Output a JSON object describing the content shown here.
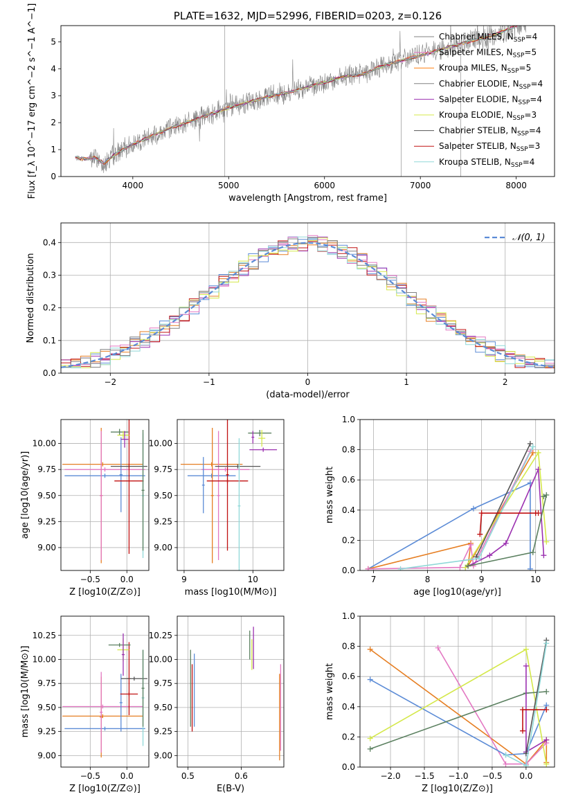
{
  "chart_data": [
    {
      "id": "spectrum",
      "type": "line",
      "title": "PLATE=1632, MJD=52996, FIBERID=0203, z=0.126",
      "xlabel": "wavelength [Angstrom, rest frame]",
      "ylabel": "Flux [f_λ 10^−17 erg cm^−2 s^−1 A^−1]",
      "xlim": [
        3250,
        8400
      ],
      "ylim": [
        0,
        5.6
      ],
      "xticks": [
        4000,
        5000,
        6000,
        7000,
        8000
      ],
      "yticks": [
        0,
        1,
        2,
        3,
        4,
        5
      ],
      "grid": false,
      "legend_position": "top-right",
      "data_color": "#808080",
      "data_x": [
        3400,
        3500,
        3600,
        3700,
        3800,
        3900,
        4000,
        4200,
        4400,
        4600,
        4800,
        5000,
        5200,
        5400,
        5600,
        5800,
        6000,
        6200,
        6400,
        6600,
        6800,
        7000,
        7200,
        7400,
        7600,
        7800,
        8000,
        8100
      ],
      "data_y": [
        0.7,
        0.65,
        0.7,
        0.5,
        0.8,
        1.0,
        1.2,
        1.5,
        1.8,
        2.05,
        2.3,
        2.55,
        2.75,
        2.95,
        3.1,
        3.3,
        3.5,
        3.7,
        3.8,
        4.1,
        4.3,
        4.5,
        4.7,
        4.9,
        5.1,
        5.3,
        5.6,
        5.8
      ],
      "series": [
        {
          "name": "Chabrier MILES",
          "nssp": "4",
          "color": "#808080"
        },
        {
          "name": "Salpeter MILES",
          "nssp": "5",
          "color": "#e377c2"
        },
        {
          "name": "Kroupa MILES",
          "nssp": "5",
          "color": "#ff7f0e"
        },
        {
          "name": "Chabrier ELODIE",
          "nssp": "4",
          "color": "#808080"
        },
        {
          "name": "Salpeter ELODIE",
          "nssp": "4",
          "color": "#9b30b0"
        },
        {
          "name": "Kroupa ELODIE",
          "nssp": "3",
          "color": "#d4e84a"
        },
        {
          "name": "Chabrier STELIB",
          "nssp": "4",
          "color": "#555555"
        },
        {
          "name": "Salpeter STELIB",
          "nssp": "3",
          "color": "#c01010"
        },
        {
          "name": "Kroupa STELIB",
          "nssp": "4",
          "color": "#8fd8d8"
        }
      ]
    },
    {
      "id": "residuals",
      "type": "line",
      "title": "",
      "xlabel": "(data-model)/error",
      "ylabel": "Normed distribution",
      "xlim": [
        -2.5,
        2.5
      ],
      "ylim": [
        0,
        0.46
      ],
      "xticks": [
        -2,
        -1,
        0,
        1,
        2
      ],
      "yticks": [
        0.0,
        0.1,
        0.2,
        0.3,
        0.4
      ],
      "grid": true,
      "legend_position": "top-right",
      "legend_label": "𝒩(0, 1)",
      "gauss_color": "#5b8bd6",
      "bin_width": 0.1,
      "hist_colors": [
        "#5b8bd6",
        "#e67e22",
        "#9b30b0",
        "#c01010",
        "#e377c2",
        "#d4e84a",
        "#8fd8d8",
        "#808080"
      ]
    },
    {
      "id": "age_vs_Z",
      "type": "scatter",
      "xlabel": "Z [log10(Z/Z⊙)]",
      "ylabel": "age  [log10(age/yr)]",
      "xlim": [
        -0.9,
        0.3
      ],
      "ylim": [
        8.78,
        10.23
      ],
      "xticks": [
        -0.5,
        0.0
      ],
      "yticks": [
        9.0,
        9.25,
        9.5,
        9.75,
        10.0
      ],
      "grid": true,
      "points": [
        {
          "x": -0.33,
          "xerr": 0.55,
          "y": 9.8,
          "yerr": 0.02,
          "color": "#e67e22"
        },
        {
          "x": -0.3,
          "xerr": 0.55,
          "y": 9.75,
          "yerr": 0.02,
          "color": "#e377c2"
        },
        {
          "x": -0.3,
          "xerr": 0.55,
          "y": 9.69,
          "yerr": 0.02,
          "color": "#5b8bd6"
        },
        {
          "x": -0.35,
          "xerr": 0.02,
          "y": 9.5,
          "yerr": 0.65,
          "color": "#e67e22"
        },
        {
          "x": -0.35,
          "xerr": 0.02,
          "y": 9.5,
          "yerr": 0.62,
          "color": "#e377c2"
        },
        {
          "x": -0.08,
          "xerr": 0.02,
          "y": 9.7,
          "yerr": 0.36,
          "color": "#5b8bd6"
        },
        {
          "x": 0.03,
          "xerr": 0.25,
          "y": 9.78,
          "yerr": 0.02,
          "color": "#555555"
        },
        {
          "x": 0.03,
          "xerr": 0.2,
          "y": 9.64,
          "yerr": 0.7,
          "color": "#c01010"
        },
        {
          "x": 0.22,
          "xerr": 0.02,
          "y": 9.5,
          "yerr": 0.6,
          "color": "#8fd8d8"
        },
        {
          "x": 0.22,
          "xerr": 0.02,
          "y": 9.55,
          "yerr": 0.58,
          "color": "#5b8060"
        },
        {
          "x": -0.1,
          "xerr": 0.12,
          "y": 10.11,
          "yerr": 0.03,
          "color": "#5b8060"
        },
        {
          "x": -0.05,
          "xerr": 0.08,
          "y": 10.08,
          "yerr": 0.04,
          "color": "#d4e84a"
        },
        {
          "x": -0.03,
          "xerr": 0.05,
          "y": 10.04,
          "yerr": 0.08,
          "color": "#9b30b0"
        }
      ]
    },
    {
      "id": "age_vs_mass",
      "type": "scatter",
      "xlabel": "mass [log10(M/M⊙)]",
      "ylabel": "",
      "xlim": [
        8.9,
        10.45
      ],
      "ylim": [
        8.78,
        10.23
      ],
      "xticks": [
        9,
        10
      ],
      "yticks": [
        9.0,
        9.25,
        9.5,
        9.75,
        10.0
      ],
      "grid": true,
      "points": [
        {
          "x": 9.4,
          "xerr": 0.45,
          "y": 9.8,
          "yerr": 0.02,
          "color": "#e67e22"
        },
        {
          "x": 9.6,
          "xerr": 0.35,
          "y": 9.75,
          "yerr": 0.02,
          "color": "#e377c2"
        },
        {
          "x": 9.4,
          "xerr": 0.35,
          "y": 9.69,
          "yerr": 0.02,
          "color": "#5b8bd6"
        },
        {
          "x": 9.28,
          "xerr": 0.02,
          "y": 9.6,
          "yerr": 0.27,
          "color": "#5b8bd6"
        },
        {
          "x": 9.41,
          "xerr": 0.02,
          "y": 9.5,
          "yerr": 0.65,
          "color": "#e67e22"
        },
        {
          "x": 9.5,
          "xerr": 0.02,
          "y": 9.5,
          "yerr": 0.62,
          "color": "#e377c2"
        },
        {
          "x": 9.63,
          "xerr": 0.3,
          "y": 9.64,
          "yerr": 0.02,
          "color": "#c01010"
        },
        {
          "x": 9.63,
          "xerr": 0.02,
          "y": 9.7,
          "yerr": 0.73,
          "color": "#c01010"
        },
        {
          "x": 9.78,
          "xerr": 0.33,
          "y": 9.78,
          "yerr": 0.02,
          "color": "#555555"
        },
        {
          "x": 9.8,
          "xerr": 0.02,
          "y": 9.4,
          "yerr": 0.65,
          "color": "#8fd8d8"
        },
        {
          "x": 10.1,
          "xerr": 0.17,
          "y": 10.1,
          "yerr": 0.03,
          "color": "#5b8060"
        },
        {
          "x": 10.13,
          "xerr": 0.05,
          "y": 10.05,
          "yerr": 0.08,
          "color": "#d4e84a"
        },
        {
          "x": 10.15,
          "xerr": 0.2,
          "y": 9.94,
          "yerr": 0.02,
          "color": "#9b30b0"
        },
        {
          "x": 10.0,
          "xerr": 0.02,
          "y": 10.06,
          "yerr": 0.06,
          "color": "#9b30b0"
        }
      ]
    },
    {
      "id": "weight_vs_age",
      "type": "line",
      "xlabel": "age  [log10(age/yr)]",
      "ylabel": "mass weight",
      "xlim": [
        6.75,
        10.35
      ],
      "ylim": [
        0.0,
        1.0
      ],
      "xticks": [
        7,
        8,
        9,
        10
      ],
      "yticks": [
        0.0,
        0.2,
        0.4,
        0.6,
        0.8,
        1.0
      ],
      "grid": true,
      "series": [
        {
          "color": "#5b8bd6",
          "x": [
            6.9,
            8.85,
            9.9,
            9.9
          ],
          "y": [
            0.01,
            0.41,
            0.58,
            0.01
          ]
        },
        {
          "color": "#e67e22",
          "x": [
            6.9,
            8.8,
            8.75,
            9.95
          ],
          "y": [
            0.01,
            0.18,
            0.03,
            0.78
          ]
        },
        {
          "color": "#e377c2",
          "x": [
            6.9,
            8.6,
            8.8,
            8.85,
            9.9
          ],
          "y": [
            0.01,
            0.02,
            0.17,
            0.03,
            0.79
          ]
        },
        {
          "color": "#9b30b0",
          "x": [
            8.7,
            9.15,
            9.45,
            10.05,
            10.15
          ],
          "y": [
            0.02,
            0.1,
            0.18,
            0.67,
            0.1
          ]
        },
        {
          "color": "#d4e84a",
          "x": [
            8.7,
            10.05,
            10.2
          ],
          "y": [
            0.02,
            0.78,
            0.19
          ]
        },
        {
          "color": "#5b8060",
          "x": [
            8.75,
            9.95,
            10.2,
            10.15
          ],
          "y": [
            0.03,
            0.12,
            0.5,
            0.49
          ]
        },
        {
          "color": "#555555",
          "x": [
            8.9,
            9.9
          ],
          "y": [
            0.09,
            0.84
          ]
        },
        {
          "color": "#8fd8d8",
          "x": [
            7.5,
            8.95,
            9.95
          ],
          "y": [
            0.01,
            0.08,
            0.82
          ]
        },
        {
          "color": "#c01010",
          "x": [
            8.97,
            9.0,
            10.0,
            10.05
          ],
          "y": [
            0.24,
            0.38,
            0.38,
            0.38
          ]
        }
      ]
    },
    {
      "id": "mass_vs_Z",
      "type": "scatter",
      "xlabel": "Z [log10(Z/Z⊙)]",
      "ylabel": "mass [log10(M/M⊙)]",
      "xlim": [
        -0.9,
        0.3
      ],
      "ylim": [
        8.88,
        10.45
      ],
      "xticks": [
        -0.5,
        0.0
      ],
      "yticks": [
        9.0,
        9.25,
        9.5,
        9.75,
        10.0,
        10.25
      ],
      "grid": true,
      "points": [
        {
          "x": -0.33,
          "xerr": 0.55,
          "y": 9.51,
          "yerr": 0.02,
          "color": "#e377c2"
        },
        {
          "x": -0.33,
          "xerr": 0.55,
          "y": 9.41,
          "yerr": 0.02,
          "color": "#e67e22"
        },
        {
          "x": -0.3,
          "xerr": 0.55,
          "y": 9.28,
          "yerr": 0.02,
          "color": "#5b8bd6"
        },
        {
          "x": -0.35,
          "xerr": 0.02,
          "y": 9.4,
          "yerr": 0.42,
          "color": "#e67e22"
        },
        {
          "x": -0.35,
          "xerr": 0.02,
          "y": 9.45,
          "yerr": 0.42,
          "color": "#e377c2"
        },
        {
          "x": -0.08,
          "xerr": 0.02,
          "y": 9.55,
          "yerr": 0.3,
          "color": "#5b8bd6"
        },
        {
          "x": 0.03,
          "xerr": 0.12,
          "y": 9.64,
          "yerr": 0.02,
          "color": "#c01010"
        },
        {
          "x": 0.03,
          "xerr": 0.02,
          "y": 9.8,
          "yerr": 0.38,
          "color": "#c01010"
        },
        {
          "x": 0.1,
          "xerr": 0.18,
          "y": 9.8,
          "yerr": 0.02,
          "color": "#555555"
        },
        {
          "x": 0.22,
          "xerr": 0.02,
          "y": 9.6,
          "yerr": 0.5,
          "color": "#8fd8d8"
        },
        {
          "x": 0.22,
          "xerr": 0.02,
          "y": 9.7,
          "yerr": 0.4,
          "color": "#5b8060"
        },
        {
          "x": -0.1,
          "xerr": 0.15,
          "y": 10.15,
          "yerr": 0.02,
          "color": "#5b8060"
        },
        {
          "x": -0.05,
          "xerr": 0.08,
          "y": 10.1,
          "yerr": 0.12,
          "color": "#d4e84a"
        },
        {
          "x": -0.05,
          "xerr": 0.02,
          "y": 10.05,
          "yerr": 0.22,
          "color": "#9b30b0"
        }
      ]
    },
    {
      "id": "mass_vs_ebv",
      "type": "scatter",
      "xlabel": "E(B-V)",
      "ylabel": "",
      "xlim": [
        0.48,
        0.68
      ],
      "ylim": [
        8.88,
        10.45
      ],
      "xticks": [
        0.5,
        0.6
      ],
      "yticks": [
        9.0,
        9.25,
        9.5,
        9.75,
        10.0,
        10.25
      ],
      "grid": true,
      "points": [
        {
          "x": 0.505,
          "xerr": 0.0,
          "y": 9.7,
          "yerr": 0.4,
          "color": "#5b8060"
        },
        {
          "x": 0.508,
          "xerr": 0.0,
          "y": 9.6,
          "yerr": 0.35,
          "color": "#c01010"
        },
        {
          "x": 0.512,
          "xerr": 0.0,
          "y": 9.68,
          "yerr": 0.38,
          "color": "#5b8bd6"
        },
        {
          "x": 0.616,
          "xerr": 0.0,
          "y": 10.15,
          "yerr": 0.15,
          "color": "#5b8060"
        },
        {
          "x": 0.62,
          "xerr": 0.0,
          "y": 10.05,
          "yerr": 0.16,
          "color": "#d4e84a"
        },
        {
          "x": 0.623,
          "xerr": 0.0,
          "y": 10.12,
          "yerr": 0.22,
          "color": "#9b30b0"
        },
        {
          "x": 0.672,
          "xerr": 0.0,
          "y": 9.4,
          "yerr": 0.45,
          "color": "#e67e22"
        },
        {
          "x": 0.674,
          "xerr": 0.0,
          "y": 9.5,
          "yerr": 0.45,
          "color": "#e377c2"
        }
      ]
    },
    {
      "id": "weight_vs_Z",
      "type": "line",
      "xlabel": "Z [log10(Z/Z⊙)]",
      "ylabel": "mass weight",
      "xlim": [
        -2.45,
        0.42
      ],
      "ylim": [
        0.0,
        1.0
      ],
      "xticks": [
        -2.0,
        -1.5,
        -1.0,
        -0.5,
        0.0
      ],
      "yticks": [
        0.0,
        0.2,
        0.4,
        0.6,
        0.8,
        1.0
      ],
      "grid": true,
      "series": [
        {
          "color": "#e67e22",
          "x": [
            -2.3,
            0.0,
            0.3,
            0.3
          ],
          "y": [
            0.78,
            0.02,
            0.18,
            0.03
          ]
        },
        {
          "color": "#e377c2",
          "x": [
            -1.3,
            -0.3,
            0.0,
            0.3
          ],
          "y": [
            0.79,
            0.02,
            0.02,
            0.16
          ]
        },
        {
          "color": "#5b8bd6",
          "x": [
            -2.3,
            -0.3,
            0.0,
            0.3
          ],
          "y": [
            0.58,
            0.08,
            0.09,
            0.41
          ]
        },
        {
          "color": "#d4e84a",
          "x": [
            -2.3,
            0.0,
            0.3
          ],
          "y": [
            0.19,
            0.78,
            0.02
          ]
        },
        {
          "color": "#5b8060",
          "x": [
            -2.3,
            0.0,
            0.3
          ],
          "y": [
            0.12,
            0.49,
            0.5
          ]
        },
        {
          "color": "#9b30b0",
          "x": [
            0.0,
            0.0,
            0.3
          ],
          "y": [
            0.67,
            0.1,
            0.18
          ]
        },
        {
          "color": "#555555",
          "x": [
            0.0,
            0.3
          ],
          "y": [
            0.09,
            0.84
          ]
        },
        {
          "color": "#8fd8d8",
          "x": [
            -0.3,
            0.0,
            0.3
          ],
          "y": [
            0.08,
            0.01,
            0.82
          ]
        },
        {
          "color": "#c01010",
          "x": [
            -0.05,
            -0.05,
            0.3
          ],
          "y": [
            0.24,
            0.38,
            0.38
          ]
        }
      ]
    }
  ]
}
